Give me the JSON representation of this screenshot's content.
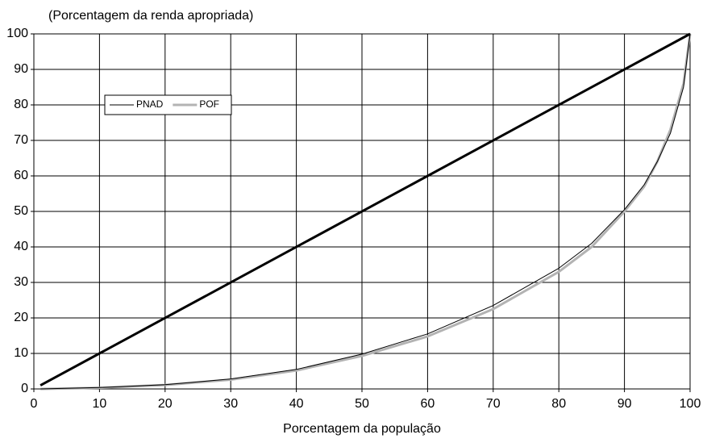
{
  "chart_data": {
    "type": "line",
    "y_label": "(Porcentagem da renda apropriada)",
    "x_label": "Porcentagem da população",
    "xlim": [
      0,
      100
    ],
    "ylim": [
      0,
      100
    ],
    "xticks": [
      0,
      10,
      20,
      30,
      40,
      50,
      60,
      70,
      80,
      90,
      100
    ],
    "yticks": [
      0,
      10,
      20,
      30,
      40,
      50,
      60,
      70,
      80,
      90,
      100
    ],
    "grid": true,
    "legend": "upper left",
    "series": [
      {
        "color": "#000000",
        "x": [
          1,
          100
        ],
        "values": [
          1,
          100
        ]
      },
      {
        "name": "PNAD",
        "color": "#000000",
        "x": [
          1,
          10,
          20,
          30,
          40,
          50,
          60,
          70,
          80,
          85,
          90,
          93,
          95,
          97,
          99,
          100
        ],
        "values": [
          0,
          0.4,
          1.2,
          2.8,
          5.5,
          9.8,
          15.5,
          23.5,
          34,
          41,
          50.5,
          57.5,
          64,
          72,
          85,
          100
        ]
      },
      {
        "name": "POF",
        "color": "#b3b3b3",
        "x": [
          1,
          10,
          20,
          30,
          40,
          50,
          60,
          70,
          80,
          85,
          90,
          93,
          95,
          97,
          99,
          100
        ],
        "values": [
          0,
          0.3,
          1.1,
          2.6,
          5.2,
          9.3,
          14.8,
          22.5,
          33,
          40,
          50,
          57,
          64,
          73,
          86,
          100
        ]
      }
    ]
  }
}
